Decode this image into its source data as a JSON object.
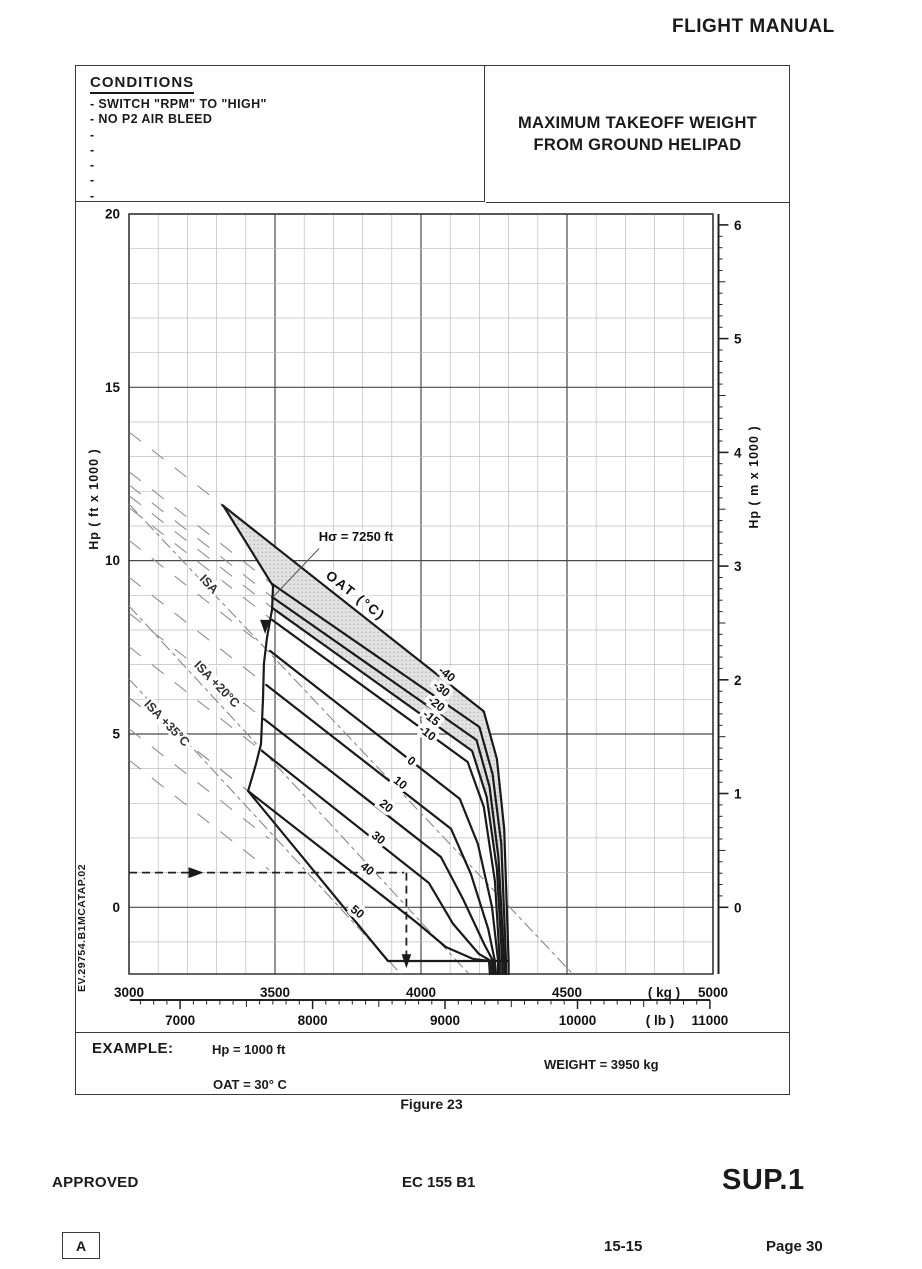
{
  "page": {
    "header": "FLIGHT MANUAL",
    "figure_caption": "Figure 23",
    "side_code": "EV.29754.B1MCATAP.02",
    "footer": {
      "approved": "APPROVED",
      "model": "EC 155 B1",
      "sup": "SUP.1",
      "revision": "A",
      "chapter": "15-15",
      "page": "Page 30"
    }
  },
  "conditions": {
    "title": "CONDITIONS",
    "items": [
      "- SWITCH \"RPM\" TO \"HIGH\"",
      "- NO P2 AIR BLEED",
      "-",
      "-",
      "-",
      "-",
      "-"
    ]
  },
  "title_box": {
    "line1": "MAXIMUM TAKEOFF WEIGHT",
    "line2": "FROM GROUND HELIPAD"
  },
  "example": {
    "label": "EXAMPLE:",
    "hp": "Hp = 1000 ft",
    "oat": "OAT = 30° C",
    "weight": "WEIGHT = 3950 kg"
  },
  "chart_data": {
    "type": "line",
    "title": "MAXIMUM TAKEOFF WEIGHT FROM GROUND HELIPAD",
    "x_axis_kg": {
      "unit": "( kg )",
      "min": 3000,
      "max": 5000,
      "ticks": [
        3000,
        3500,
        4000,
        4500,
        5000
      ],
      "minor_step": 100
    },
    "x_axis_lb": {
      "unit": "( lb )",
      "ticks": [
        7000,
        8000,
        9000,
        10000,
        11000
      ],
      "minor_step": 100,
      "start": 6700,
      "end": 11000
    },
    "y_axis_ft": {
      "label": "Hp ( ft x 1000 )",
      "min": -1925,
      "max": 20000,
      "labeled_ticks": [
        0,
        5000,
        10000,
        15000,
        20000
      ],
      "minor_step": 1000,
      "major_step": 5000
    },
    "y_axis_m": {
      "label": "Hp ( m x 1000 )",
      "ticks": [
        0,
        1,
        2,
        3,
        4,
        5,
        6
      ]
    },
    "oat_family_label": "OAT (°C)",
    "hsigma_label": "Hσ = 7250 ft",
    "hsigma_label_at": [
      3650,
      10560
    ],
    "hsigma_leader": [
      [
        3651,
        10350
      ],
      [
        3493,
        8950
      ]
    ],
    "curve_label_angle_deg": 38,
    "curves": [
      {
        "oat": "-40",
        "label_at": [
          4080,
          6640
        ],
        "points": [
          [
            3320,
            11600
          ],
          [
            4215,
            5650
          ],
          [
            4260,
            4280
          ],
          [
            4285,
            2260
          ],
          [
            4300,
            -1550
          ],
          [
            4300,
            -1925
          ]
        ]
      },
      {
        "oat": "-30",
        "label_at": [
          4062,
          6210
        ],
        "points": [
          [
            3490,
            9330
          ],
          [
            4200,
            5200
          ],
          [
            4245,
            3850
          ],
          [
            4275,
            1825
          ],
          [
            4291,
            -1550
          ],
          [
            4291,
            -1925
          ]
        ]
      },
      {
        "oat": "-20",
        "label_at": [
          4045,
          5780
        ],
        "points": [
          [
            3490,
            8950
          ],
          [
            4190,
            4825
          ],
          [
            4235,
            3470
          ],
          [
            4265,
            1450
          ],
          [
            4285,
            -1550
          ],
          [
            4285,
            -1925
          ]
        ]
      },
      {
        "oat": "-15",
        "label_at": [
          4027,
          5375
        ],
        "points": [
          [
            3490,
            8640
          ],
          [
            4175,
            4510
          ],
          [
            4225,
            3180
          ],
          [
            4260,
            1100
          ],
          [
            4278,
            -1550
          ],
          [
            4278,
            -1925
          ]
        ]
      },
      {
        "oat": "-10",
        "label_at": [
          4014,
          4940
        ],
        "points": [
          [
            3490,
            8290
          ],
          [
            4160,
            4190
          ],
          [
            4215,
            2895
          ],
          [
            4253,
            760
          ],
          [
            4270,
            -1550
          ],
          [
            4270,
            -1925
          ]
        ]
      },
      {
        "oat": "0",
        "label_at": [
          3959,
          4130
        ],
        "points": [
          [
            3483,
            7395
          ],
          [
            4133,
            3125
          ],
          [
            4195,
            1825
          ],
          [
            4243,
            10
          ],
          [
            4264,
            -1550
          ],
          [
            4264,
            -1925
          ]
        ]
      },
      {
        "oat": "10",
        "label_at": [
          3921,
          3500
        ],
        "points": [
          [
            3470,
            6415
          ],
          [
            4103,
            2260
          ],
          [
            4171,
            960
          ],
          [
            4230,
            -625
          ],
          [
            4253,
            -1550
          ],
          [
            4257,
            -1925
          ]
        ]
      },
      {
        "oat": "20",
        "label_at": [
          3873,
          2835
        ],
        "points": [
          [
            3462,
            5430
          ],
          [
            4068,
            1450
          ],
          [
            4144,
            240
          ],
          [
            4216,
            -1060
          ],
          [
            4247,
            -1550
          ],
          [
            4250,
            -1925
          ]
        ]
      },
      {
        "oat": "30",
        "label_at": [
          3846,
          1915
        ],
        "points": [
          [
            3455,
            4510
          ],
          [
            4027,
            700
          ],
          [
            4110,
            -480
          ],
          [
            4199,
            -1350
          ],
          [
            4240,
            -1550
          ],
          [
            4243,
            -1925
          ]
        ]
      },
      {
        "oat": "40",
        "label_at": [
          3808,
          1020
        ],
        "points": [
          [
            3408,
            3355
          ],
          [
            3983,
            -425
          ],
          [
            4085,
            -1145
          ],
          [
            4178,
            -1490
          ],
          [
            4233,
            -1550
          ],
          [
            4236,
            -1925
          ]
        ]
      },
      {
        "oat": "50",
        "label_at": [
          3774,
          -220
        ],
        "points": [
          [
            3408,
            3355
          ],
          [
            3887,
            -1550
          ]
        ]
      }
    ],
    "boundary": [
      [
        3322,
        11600
      ],
      [
        3493,
        9270
      ],
      [
        3490,
        8600
      ],
      [
        3473,
        7800
      ],
      [
        3462,
        7020
      ],
      [
        3459,
        6010
      ],
      [
        3452,
        4710
      ],
      [
        3435,
        4135
      ],
      [
        3408,
        3355
      ]
    ],
    "boundary_arrow_at": [
      3466,
      8030
    ],
    "bottom_line": [
      [
        3887,
        -1550
      ],
      [
        4300,
        -1550
      ]
    ],
    "shade_between": [
      "-40",
      "-15"
    ],
    "hatch_slope_ft_per_kg": 6.61,
    "hatch_extra_rows": [
      [
        3000,
        5150
      ],
      [
        3000,
        4250
      ]
    ],
    "hatch_clip": [
      [
        3000,
        14200
      ],
      [
        3322,
        11600
      ],
      [
        3493,
        9270
      ],
      [
        3490,
        8600
      ],
      [
        3473,
        7800
      ],
      [
        3452,
        4710
      ],
      [
        3408,
        3355
      ],
      [
        3887,
        -1550
      ],
      [
        3000,
        -1550
      ]
    ],
    "isa_lines": [
      {
        "label": "ISA",
        "label_at": [
          3264,
          9240
        ],
        "from": [
          3000,
          11630
        ],
        "to": [
          4520,
          -1925
        ]
      },
      {
        "label": "ISA +20°C",
        "label_at": [
          3291,
          6355
        ],
        "from": [
          3000,
          8690
        ],
        "to": [
          4164,
          -1925
        ]
      },
      {
        "label": "ISA +35°C",
        "label_at": [
          3120,
          5230
        ],
        "from": [
          3000,
          6585
        ],
        "to": [
          3931,
          -1925
        ]
      }
    ],
    "example_path": {
      "hp_ft": 1000,
      "weight_kg": 3950,
      "h_from_kg": 3000,
      "h_to_kg": 3942,
      "h_arrow_kg": 3245,
      "v_arrow_tip_ft": -1760
    }
  }
}
